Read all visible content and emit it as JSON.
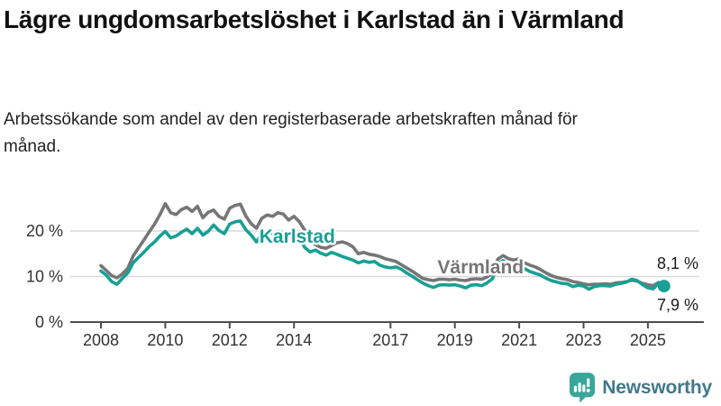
{
  "header": {
    "title": "Lägre ungdomsarbetslöshet i Karlstad än i Värmland",
    "subtitle": "Arbetssökande som andel av den registerbaserade arbetskraften månad för månad."
  },
  "colors": {
    "karlstad_teal": "#18a094",
    "varmland_gray": "#767676",
    "gridline": "#d9d9d9",
    "axis": "#4d4d4d",
    "tick_text": "#333333",
    "value_label_text": "#1a1a1a",
    "logo_icon_teal": "#3aa69b",
    "logo_text_slate": "#41798b"
  },
  "chart_data": {
    "type": "line",
    "title": "Lägre ungdomsarbetslöshet i Karlstad än i Värmland",
    "unit": "%",
    "grid": true,
    "legend_position": "inline-labels",
    "x_start": 2008.0,
    "x_end": 2025.5,
    "x_step_years": 0.1666667,
    "ylim": [
      0,
      29
    ],
    "y_ticks": [
      {
        "value": 0,
        "label": "0 %"
      },
      {
        "value": 10,
        "label": "10 %"
      },
      {
        "value": 20,
        "label": "20 %"
      }
    ],
    "x_ticks": [
      {
        "year": 2008,
        "label": "2008"
      },
      {
        "year": 2010,
        "label": "2010"
      },
      {
        "year": 2012,
        "label": "2012"
      },
      {
        "year": 2014,
        "label": "2014"
      },
      {
        "year": 2017,
        "label": "2017"
      },
      {
        "year": 2019,
        "label": "2019"
      },
      {
        "year": 2021,
        "label": "2021"
      },
      {
        "year": 2023,
        "label": "2023"
      },
      {
        "year": 2025,
        "label": "2025"
      }
    ],
    "series": [
      {
        "name": "Värmland",
        "color": "#767676",
        "end_label": "8,1 %",
        "end_label_position": "above",
        "end_dot": false,
        "label_anchor": {
          "year": 2019.8,
          "value": 12.1
        },
        "values": [
          12.4,
          11.3,
          10.2,
          9.7,
          10.6,
          11.8,
          14.5,
          16.3,
          18.0,
          19.8,
          21.5,
          23.6,
          26.0,
          24.0,
          23.6,
          24.7,
          25.2,
          24.3,
          25.4,
          22.9,
          24.1,
          24.6,
          23.2,
          22.6,
          25.0,
          25.6,
          25.9,
          23.3,
          21.6,
          20.6,
          22.8,
          23.5,
          23.2,
          24.0,
          23.7,
          22.4,
          23.2,
          22.0,
          20.2,
          18.0,
          17.0,
          16.4,
          16.2,
          16.8,
          17.4,
          17.6,
          17.2,
          16.5,
          15.0,
          15.3,
          14.9,
          14.7,
          14.4,
          13.9,
          13.6,
          13.3,
          12.6,
          11.9,
          11.2,
          10.4,
          9.6,
          9.3,
          9.1,
          9.4,
          9.4,
          9.3,
          9.4,
          9.2,
          9.1,
          9.4,
          9.5,
          9.4,
          9.9,
          10.8,
          13.8,
          14.6,
          13.9,
          13.6,
          13.9,
          13.0,
          12.5,
          12.1,
          11.5,
          10.8,
          10.2,
          9.8,
          9.5,
          9.3,
          8.9,
          8.7,
          8.4,
          8.2,
          8.3,
          8.3,
          8.4,
          8.3,
          8.6,
          8.7,
          8.9,
          9.2,
          9.0,
          8.5,
          8.2,
          8.0,
          8.7,
          8.1
        ]
      },
      {
        "name": "Karlstad",
        "color": "#18a094",
        "end_label": "7,9 %",
        "end_label_position": "below",
        "end_dot": true,
        "label_anchor": {
          "year": 2014.1,
          "value": 18.8
        },
        "values": [
          11.2,
          10.3,
          8.9,
          8.3,
          9.6,
          10.8,
          13.0,
          14.2,
          15.3,
          16.6,
          17.6,
          18.9,
          19.9,
          18.5,
          18.9,
          19.7,
          20.4,
          19.4,
          20.6,
          19.1,
          19.9,
          21.3,
          20.1,
          19.4,
          21.5,
          22.0,
          22.2,
          20.3,
          19.1,
          17.6,
          19.3,
          19.8,
          19.4,
          19.9,
          19.6,
          18.9,
          19.2,
          18.5,
          16.4,
          15.4,
          15.8,
          15.1,
          14.7,
          15.3,
          14.9,
          14.4,
          14.0,
          13.6,
          13.0,
          13.4,
          13.1,
          13.3,
          12.5,
          12.1,
          11.9,
          12.1,
          11.6,
          10.8,
          10.1,
          9.3,
          8.6,
          8.0,
          7.6,
          8.1,
          8.2,
          8.1,
          8.2,
          7.9,
          7.5,
          8.1,
          8.2,
          8.0,
          8.6,
          9.5,
          12.8,
          13.5,
          12.6,
          12.3,
          12.6,
          11.7,
          11.1,
          10.7,
          10.3,
          9.6,
          9.1,
          8.8,
          8.5,
          8.4,
          7.8,
          8.1,
          7.9,
          7.2,
          7.8,
          8.0,
          8.0,
          7.9,
          8.3,
          8.5,
          8.8,
          9.4,
          9.1,
          8.2,
          7.5,
          7.3,
          8.6,
          7.9
        ]
      }
    ]
  },
  "logo": {
    "text": "Newsworthy"
  }
}
